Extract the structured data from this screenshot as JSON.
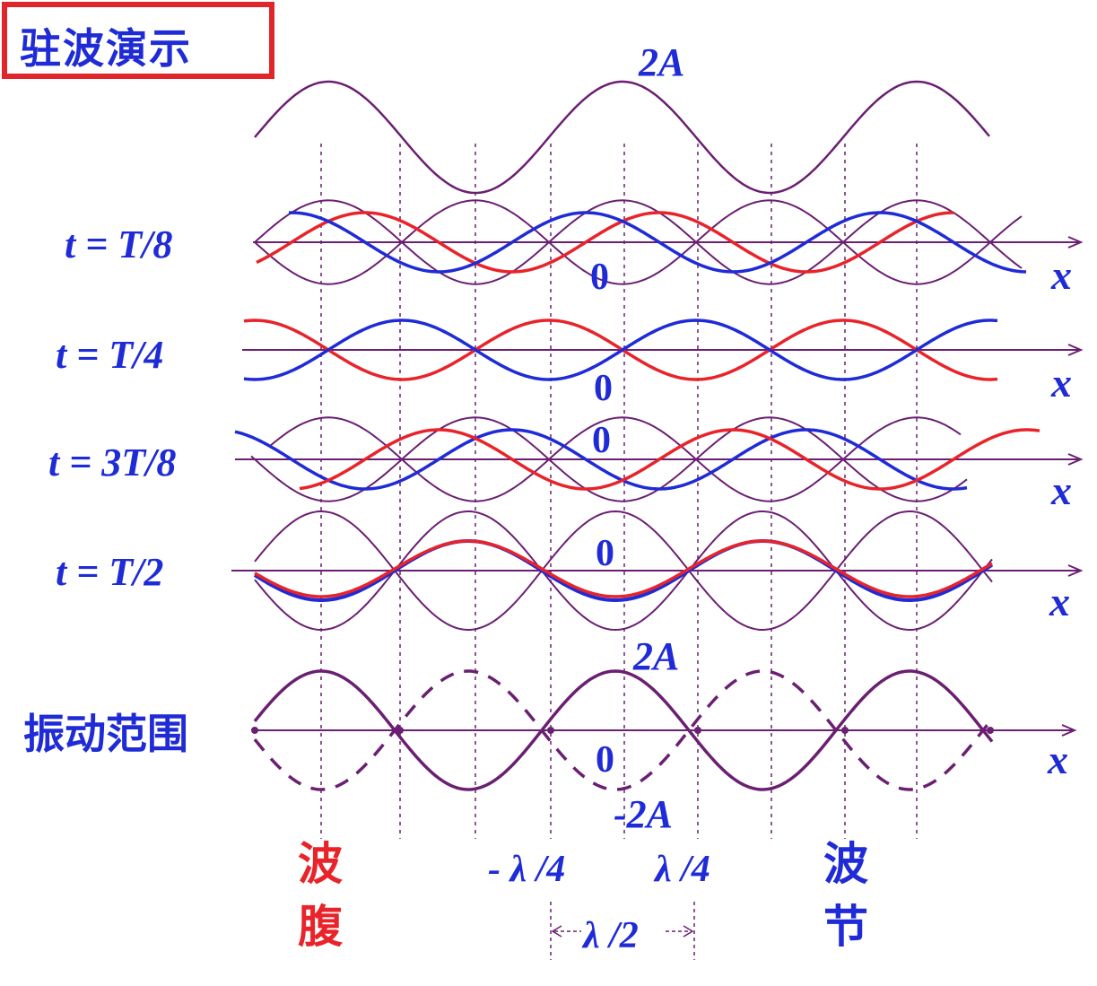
{
  "title": "驻波演示",
  "colors": {
    "red": "#e8242a",
    "blue": "#1f2bd6",
    "purple": "#6b1f72",
    "title_border": "#e0252b"
  },
  "labels": {
    "amp_top": "2A",
    "amp_range_top": "2A",
    "amp_range_bottom": "-2A",
    "zero": "0",
    "x_axis": "x",
    "t1": "t = T/8",
    "t2": "t = T/4",
    "t3": "t = 3T/8",
    "t4": "t = T/2",
    "range_label": "振动范围",
    "antinode_1": "波",
    "antinode_2": "腹",
    "node_1": "波",
    "node_2": "节",
    "minus_lambda_4": "- λ /4",
    "lambda_4": "λ /4",
    "lambda_2": "λ /2"
  }
}
